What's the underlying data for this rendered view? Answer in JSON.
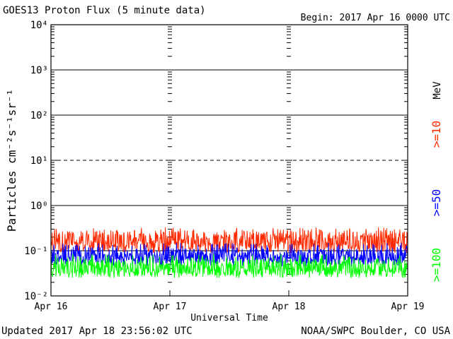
{
  "header": {
    "title": "GOES13 Proton Flux (5 minute data)",
    "begin": "Begin: 2017 Apr 16 0000 UTC"
  },
  "footer": {
    "updated": "Updated 2017 Apr 18 23:56:02 UTC",
    "credit": "NOAA/SWPC Boulder, CO USA"
  },
  "chart_data": {
    "type": "line",
    "title": "GOES13 Proton Flux (5 minute data)",
    "xlabel": "Universal Time",
    "ylabel": "Particles cm⁻²s⁻¹sr⁻¹",
    "y_scale": "log",
    "ylim": [
      0.01,
      10000
    ],
    "xlim": [
      0,
      72
    ],
    "x_unit": "hours since Apr 16 0000 UTC",
    "x_ticks": [
      {
        "value": 0,
        "label": "Apr 16"
      },
      {
        "value": 24,
        "label": "Apr 17"
      },
      {
        "value": 48,
        "label": "Apr 18"
      },
      {
        "value": 72,
        "label": "Apr 19"
      }
    ],
    "y_ticks": [
      {
        "value": 0.01,
        "label": "10⁻²"
      },
      {
        "value": 0.1,
        "label": "10⁻¹"
      },
      {
        "value": 1,
        "label": "10⁰"
      },
      {
        "value": 10,
        "label": "10¹"
      },
      {
        "value": 100,
        "label": "10²"
      },
      {
        "value": 1000,
        "label": "10³"
      },
      {
        "value": 10000,
        "label": "10⁴"
      }
    ],
    "thresholds": [
      {
        "value": 10,
        "style": "dashed"
      },
      {
        "value": 0.1,
        "style": "solid"
      },
      {
        "value": 1,
        "style": "solid"
      },
      {
        "value": 100,
        "style": "solid"
      },
      {
        "value": 1000,
        "style": "solid"
      }
    ],
    "legend_unit": "MeV",
    "series": [
      {
        "name": ">=10",
        "color": "#ff2a00",
        "mean": 0.17,
        "min": 0.09,
        "max": 0.33
      },
      {
        "name": ">=50",
        "color": "#0000ff",
        "mean": 0.075,
        "min": 0.045,
        "max": 0.15
      },
      {
        "name": ">=100",
        "color": "#00ff00",
        "mean": 0.042,
        "min": 0.025,
        "max": 0.085
      }
    ]
  }
}
